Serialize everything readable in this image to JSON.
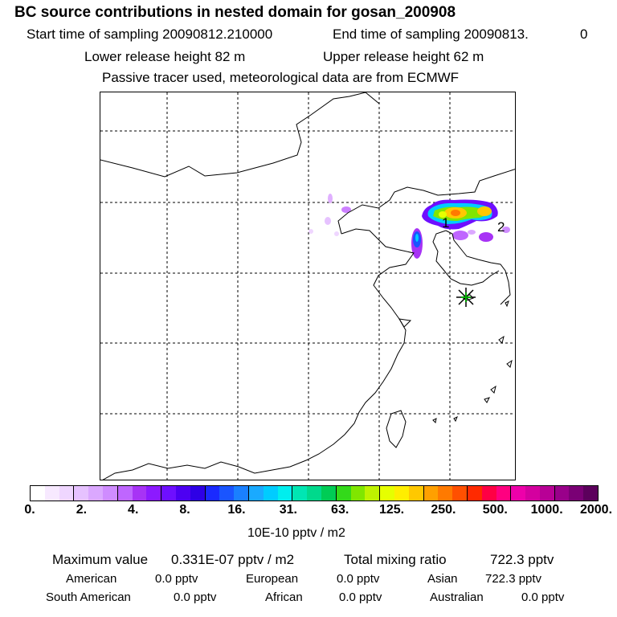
{
  "header": {
    "title": "BC  source contributions in nested domain for gosan_200908",
    "start_label": "Start time of sampling 20090812.210000",
    "end_label": "End time of sampling 20090813.",
    "end_value": "0",
    "lower_release": "Lower release height   82 m",
    "upper_release": "Upper release height   62 m",
    "tracer_note": "Passive tracer used, meteorological data are from ECMWF"
  },
  "map": {
    "markers": [
      {
        "label": "1"
      },
      {
        "label": "2"
      }
    ],
    "receptor": "receptor-star"
  },
  "colorbar": {
    "colors": [
      "#ffffff",
      "#f7e9ff",
      "#efd6ff",
      "#e6c2ff",
      "#dba8ff",
      "#cf8cff",
      "#bf66ff",
      "#a733f5",
      "#8c1aff",
      "#6e0fff",
      "#4d00f2",
      "#2e00e6",
      "#1a2aff",
      "#1a55ff",
      "#1a80ff",
      "#1aaaff",
      "#00ccff",
      "#00eeee",
      "#00e6b3",
      "#00d98c",
      "#00cc55",
      "#33d91a",
      "#80e600",
      "#bff200",
      "#e6ff00",
      "#ffee00",
      "#ffc800",
      "#ffa000",
      "#ff7a00",
      "#ff5000",
      "#ff2a00",
      "#ff0044",
      "#ff0080",
      "#ee00aa",
      "#d4009f",
      "#b80096",
      "#99008a",
      "#7a0075",
      "#5c005c"
    ],
    "tick_labels": [
      "0.",
      "2.",
      "4.",
      "8.",
      "16.",
      "31.",
      "63.",
      "125.",
      "250.",
      "500.",
      "1000.",
      "2000."
    ],
    "unit_label": "10E-10 pptv / m2"
  },
  "stats": {
    "max_label": "Maximum value",
    "max_value": "0.331E-07 pptv / m2",
    "total_label": "Total mixing ratio",
    "total_value": "722.3 pptv",
    "american_label": "American",
    "american_value": "0.0 pptv",
    "european_label": "European",
    "european_value": "0.0 pptv",
    "asian_label": "Asian",
    "asian_value": "722.3 pptv",
    "south_american_label": "South American",
    "south_american_value": "0.0 pptv",
    "african_label": "African",
    "african_value": "0.0 pptv",
    "australian_label": "Australian",
    "australian_value": "0.0 pptv"
  }
}
